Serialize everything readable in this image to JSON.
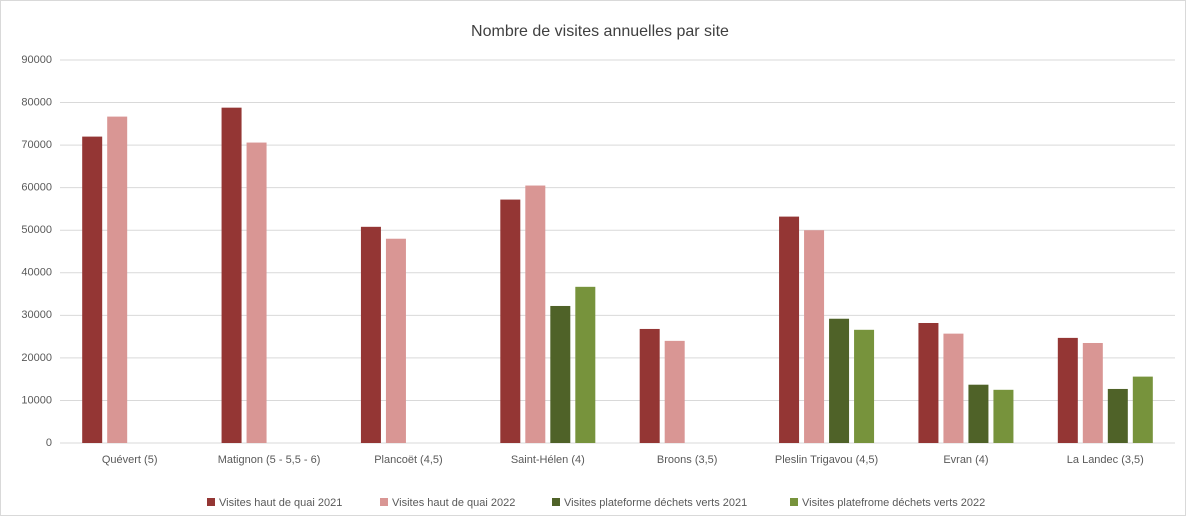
{
  "chart_data": {
    "type": "bar",
    "title": "Nombre de visites annuelles par site",
    "categories": [
      "Quévert (5)",
      "Matignon (5 - 5,5 - 6)",
      "Plancoët (4,5)",
      "Saint-Hélen (4)",
      "Broons (3,5)",
      "Pleslin Trigavou (4,5)",
      "Evran (4)",
      "La Landec (3,5)"
    ],
    "series": [
      {
        "name": "Visites haut de quai 2021",
        "color": "#943634",
        "values": [
          72000,
          78800,
          50800,
          57200,
          26800,
          53200,
          28200,
          24700
        ]
      },
      {
        "name": "Visites haut de quai 2022",
        "color": "#d99694",
        "values": [
          76700,
          70600,
          48000,
          60500,
          24000,
          50000,
          25700,
          23500
        ]
      },
      {
        "name": "Visites plateforme déchets verts 2021",
        "color": "#4f6228",
        "values": [
          null,
          null,
          null,
          32200,
          null,
          29200,
          13700,
          12700
        ]
      },
      {
        "name": "Visites platefrome déchets verts 2022",
        "color": "#77933c",
        "values": [
          null,
          null,
          null,
          36700,
          null,
          26600,
          12500,
          15600
        ]
      }
    ],
    "ylim": [
      0,
      90000
    ],
    "yticks": [
      0,
      10000,
      20000,
      30000,
      40000,
      50000,
      60000,
      70000,
      80000,
      90000
    ],
    "grid": true,
    "legend": "bottom"
  }
}
